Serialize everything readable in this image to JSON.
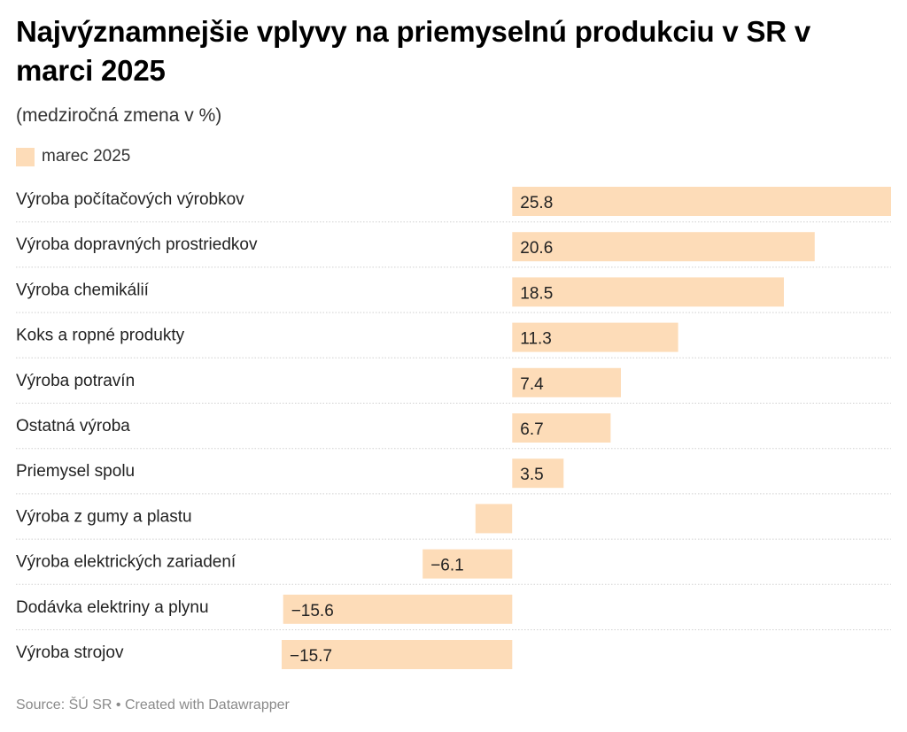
{
  "title": "Najvýznamnejšie vplyvy na priemyselnú produkciu v SR v marci 2025",
  "subtitle": "(medziročná zmena v %)",
  "source": "Source: ŠÚ SR • Created with Datawrapper",
  "colors": {
    "bar": "#fddcb8",
    "separator": "#d0d0d0"
  },
  "chart_data": {
    "type": "bar",
    "orientation": "horizontal",
    "title": "Najvýznamnejšie vplyvy na priemyselnú produkciu v SR v marci 2025",
    "subtitle": "(medziročná zmena v %)",
    "categories": [
      "Výroba počítačových výrobkov",
      "Výroba dopravných prostriedkov",
      "Výroba chemikálií",
      "Koks a ropné produkty",
      "Výroba potravín",
      "Ostatná výroba",
      "Priemysel spolu",
      "Výroba z gumy a plastu",
      "Výroba elektrických zariadení",
      "Dodávka elektriny a plynu",
      "Výroba strojov"
    ],
    "series": [
      {
        "name": "marec 2025",
        "values": [
          25.8,
          20.6,
          18.5,
          11.3,
          7.4,
          6.7,
          3.5,
          -2.5,
          -6.1,
          -15.6,
          -15.7
        ],
        "labels": [
          "25.8",
          "20.6",
          "18.5",
          "11.3",
          "7.4",
          "6.7",
          "3.5",
          "",
          "−6.1",
          "−15.6",
          "−15.7"
        ]
      }
    ],
    "xlim": [
      -15.7,
      25.8
    ],
    "grid": false,
    "legend": "top-left"
  }
}
